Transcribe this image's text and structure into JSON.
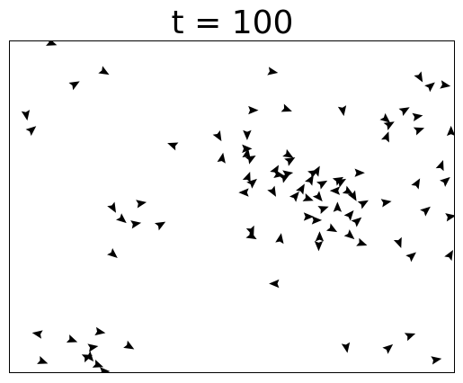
{
  "plot": {
    "title": "t = 100",
    "marker_color": "#000000",
    "marker_shape": "triangle"
  }
}
